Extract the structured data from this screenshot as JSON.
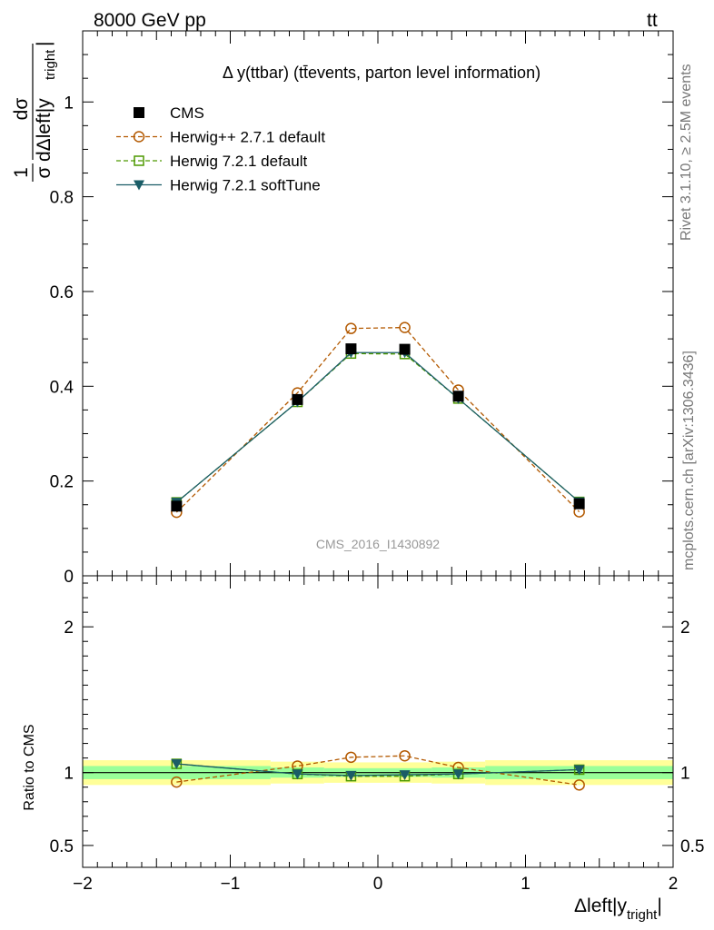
{
  "header": {
    "left": "8000 GeV pp",
    "right_main": "tt",
    "right_bar": "̄"
  },
  "side_labels": {
    "rivet": "Rivet 3.1.10, ≥ 2.5M events",
    "mcplots": "mcplots.cern.ch [arXiv:1306.3436]"
  },
  "chart_data": [
    {
      "type": "line",
      "title": "Δ y(ttbar) (tt̄events, parton level information)",
      "watermark": "CMS_2016_I1430892",
      "ylabel": "1/σ dσ/dΔleft|y_tright|",
      "ylim": [
        0,
        1.15
      ],
      "yticks": [
        0,
        0.2,
        0.4,
        0.6,
        0.8,
        1
      ],
      "ytick_labels": [
        "0",
        "0.2",
        "0.4",
        "0.6",
        "0.8",
        "1"
      ],
      "x": [
        -1.364,
        -0.545,
        -0.182,
        0.182,
        0.545,
        1.364
      ],
      "series": [
        {
          "name": "CMS",
          "style": "data",
          "color": "#000000",
          "marker": "square-filled",
          "values": [
            0.147,
            0.372,
            0.479,
            0.478,
            0.379,
            0.152
          ]
        },
        {
          "name": "Herwig++ 2.7.1 default",
          "style": "dashed",
          "color": "#b35900",
          "marker": "circle-open",
          "values": [
            0.134,
            0.386,
            0.522,
            0.524,
            0.392,
            0.135
          ]
        },
        {
          "name": "Herwig 7.2.1 default",
          "style": "dashed",
          "color": "#4d9900",
          "marker": "square-open",
          "values": [
            0.155,
            0.367,
            0.469,
            0.468,
            0.374,
            0.156
          ]
        },
        {
          "name": "Herwig 7.2.1 softTune",
          "style": "solid",
          "color": "#1a5c66",
          "marker": "triangle-down-filled",
          "values": [
            0.155,
            0.367,
            0.471,
            0.471,
            0.374,
            0.156
          ]
        }
      ]
    },
    {
      "type": "line",
      "ylabel": "Ratio to CMS",
      "xlabel": "Δleft|y_tright|",
      "xlim": [
        -2.0,
        2.0
      ],
      "xticks": [
        -2,
        -1,
        0,
        1,
        2
      ],
      "xtick_labels": [
        "−2",
        "−1",
        "0",
        "1",
        "2"
      ],
      "ylim": [
        0.35,
        2.35
      ],
      "yticks": [
        0.5,
        1,
        2
      ],
      "ytick_labels": [
        "0.5",
        "1",
        "2"
      ],
      "bands": {
        "edges": [
          -2.0,
          -0.727,
          -0.364,
          0.0,
          0.364,
          0.727,
          2.0
        ],
        "inner_half_width": [
          0.045,
          0.035,
          0.03,
          0.03,
          0.035,
          0.045
        ],
        "outer_half_width": [
          0.085,
          0.075,
          0.07,
          0.07,
          0.075,
          0.085
        ],
        "inner_color": "#99ff99",
        "outer_color": "#ffff99"
      },
      "series": [
        {
          "name": "Herwig++ 2.7.1 default",
          "values": [
            0.935,
            1.045,
            1.105,
            1.115,
            1.035,
            0.915
          ]
        },
        {
          "name": "Herwig 7.2.1 default",
          "values": [
            1.06,
            0.99,
            0.975,
            0.975,
            0.99,
            1.02
          ]
        },
        {
          "name": "Herwig 7.2.1 softTune",
          "values": [
            1.06,
            0.99,
            0.98,
            0.985,
            0.99,
            1.02
          ]
        }
      ]
    }
  ]
}
